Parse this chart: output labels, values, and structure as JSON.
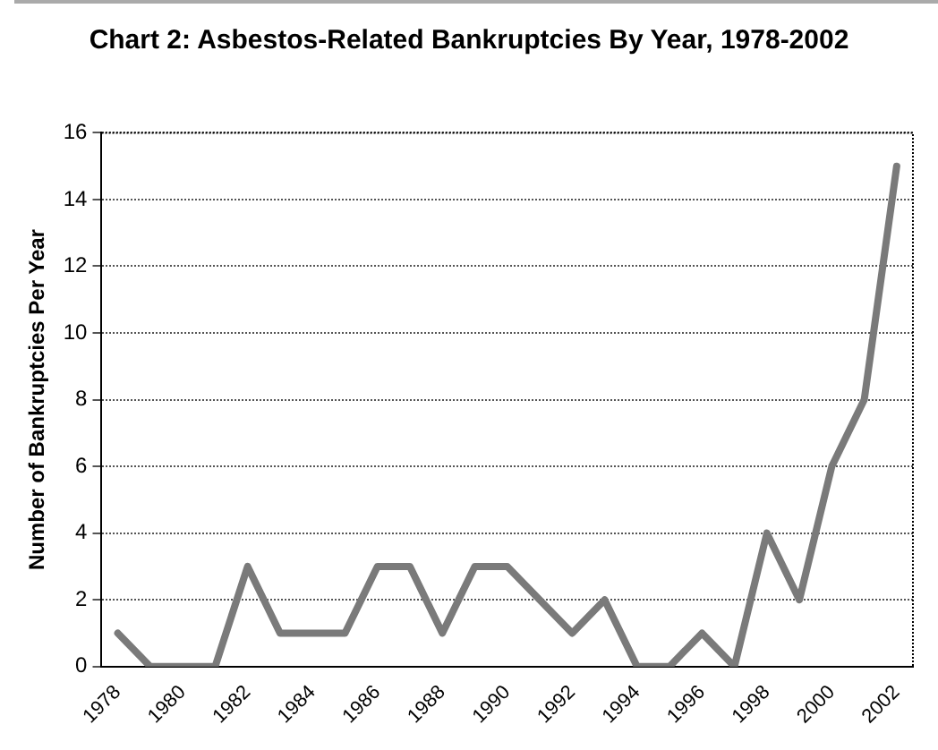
{
  "chart_data": {
    "type": "line",
    "title": "Chart 2: Asbestos-Related Bankruptcies By Year, 1978-2002",
    "ylabel": "Number of Bankruptcies Per Year",
    "categories": [
      "1978",
      null,
      "1980",
      null,
      "1982",
      null,
      "1984",
      null,
      "1986",
      null,
      "1988",
      null,
      "1990",
      null,
      "1992",
      null,
      "1994",
      null,
      "1996",
      null,
      "1998",
      null,
      "2000",
      null,
      "2002"
    ],
    "series": [
      {
        "color": "#7a7a7a",
        "values": [
          1,
          0,
          0,
          0,
          3,
          1,
          1,
          1,
          3,
          3,
          1,
          3,
          3,
          2,
          1,
          2,
          0,
          0,
          1,
          0,
          4,
          2,
          6,
          8,
          15
        ]
      }
    ],
    "ylim": [
      0,
      16
    ],
    "yticks": [
      0,
      2,
      4,
      6,
      8,
      10,
      12,
      14,
      16
    ],
    "grid": "y",
    "legend": false,
    "marker": "none",
    "line_style": "solid"
  }
}
